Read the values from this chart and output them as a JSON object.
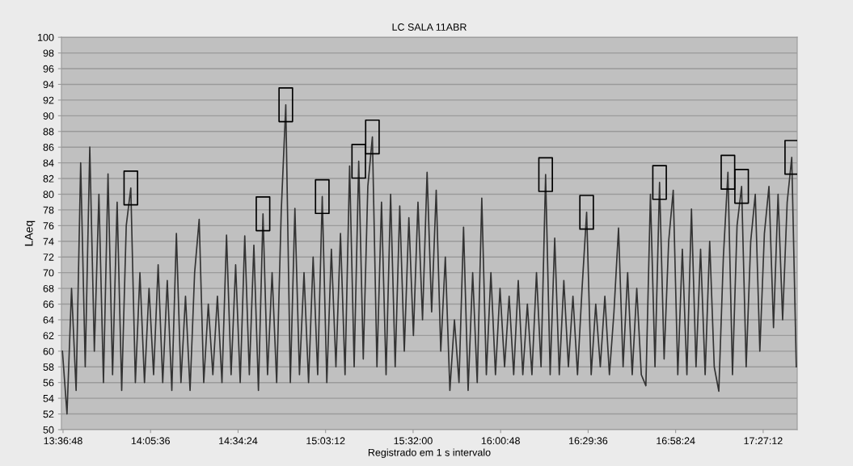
{
  "chart_data": {
    "type": "line",
    "title": "LC SALA 11ABR",
    "xlabel": "Registrado em 1 s intervalo",
    "ylabel": "LAeq",
    "xlim": [
      13.6044,
      17.64
    ],
    "ylim": [
      50,
      100
    ],
    "xticks": [
      {
        "value": 13.6133,
        "label": "13:36:48"
      },
      {
        "value": 14.0933,
        "label": "14:05:36"
      },
      {
        "value": 14.5733,
        "label": "14:34:24"
      },
      {
        "value": 15.0533,
        "label": "15:03:12"
      },
      {
        "value": 15.5333,
        "label": "15:32:00"
      },
      {
        "value": 16.0133,
        "label": "16:00:48"
      },
      {
        "value": 16.4933,
        "label": "16:29:36"
      },
      {
        "value": 16.9733,
        "label": "16:58:24"
      },
      {
        "value": 17.4533,
        "label": "17:27:12"
      }
    ],
    "yticks": [
      50,
      52,
      54,
      56,
      58,
      60,
      62,
      64,
      66,
      68,
      70,
      72,
      74,
      76,
      78,
      80,
      82,
      84,
      86,
      88,
      90,
      92,
      94,
      96,
      98,
      100
    ],
    "grid": "y",
    "series": [
      {
        "color": "#333333",
        "marker": "none",
        "x": [
          13.61,
          13.635,
          13.66,
          13.685,
          13.71,
          13.735,
          13.76,
          13.785,
          13.81,
          13.835,
          13.86,
          13.885,
          13.91,
          13.935,
          13.96,
          13.985,
          14.01,
          14.035,
          14.06,
          14.085,
          14.11,
          14.135,
          14.16,
          14.185,
          14.21,
          14.235,
          14.26,
          14.285,
          14.31,
          14.335,
          14.36,
          14.385,
          14.41,
          14.435,
          14.46,
          14.485,
          14.51,
          14.535,
          14.56,
          14.585,
          14.61,
          14.635,
          14.66,
          14.685,
          14.71,
          14.735,
          14.76,
          14.785,
          14.81,
          14.835,
          14.86,
          14.885,
          14.91,
          14.935,
          14.96,
          14.985,
          15.01,
          15.035,
          15.06,
          15.085,
          15.11,
          15.135,
          15.16,
          15.185,
          15.21,
          15.235,
          15.26,
          15.285,
          15.31,
          15.335,
          15.36,
          15.385,
          15.41,
          15.435,
          15.46,
          15.485,
          15.51,
          15.535,
          15.56,
          15.585,
          15.61,
          15.635,
          15.66,
          15.685,
          15.71,
          15.735,
          15.76,
          15.785,
          15.81,
          15.835,
          15.86,
          15.885,
          15.91,
          15.935,
          15.96,
          15.985,
          16.01,
          16.035,
          16.06,
          16.085,
          16.11,
          16.135,
          16.16,
          16.185,
          16.21,
          16.235,
          16.26,
          16.285,
          16.31,
          16.335,
          16.36,
          16.385,
          16.41,
          16.435,
          16.46,
          16.485,
          16.51,
          16.535,
          16.56,
          16.585,
          16.61,
          16.635,
          16.66,
          16.685,
          16.71,
          16.735,
          16.76,
          16.785,
          16.81,
          16.835,
          16.86,
          16.885,
          16.91,
          16.935,
          16.96,
          16.985,
          17.01,
          17.035,
          17.06,
          17.085,
          17.11,
          17.135,
          17.16,
          17.185,
          17.21,
          17.235,
          17.26,
          17.285,
          17.31,
          17.335,
          17.36,
          17.385,
          17.41,
          17.435,
          17.46,
          17.485,
          17.51,
          17.535,
          17.56,
          17.585,
          17.61,
          17.635
        ],
        "values": [
          60,
          52,
          68,
          55,
          84,
          58,
          86,
          60,
          80,
          56,
          82.6,
          57,
          79,
          55,
          76,
          80.8,
          56,
          70,
          56,
          68,
          57,
          71,
          56,
          69,
          55,
          75,
          56,
          67,
          55,
          70,
          76.8,
          56,
          66,
          57,
          67,
          56,
          74.8,
          57,
          71,
          56,
          74.7,
          57,
          73.5,
          55,
          77.5,
          57,
          70,
          56,
          77.8,
          91.4,
          56,
          78.2,
          57,
          70,
          56,
          72,
          57,
          79.7,
          56,
          73,
          58,
          75,
          57,
          83.6,
          58,
          84.2,
          59,
          81,
          87.3,
          58,
          79,
          57,
          80,
          58,
          78.5,
          60,
          77,
          62,
          79,
          64,
          82.8,
          65,
          80.5,
          60,
          72,
          55,
          64,
          56,
          75.8,
          55,
          70,
          56,
          79.5,
          57,
          70,
          57,
          68,
          58,
          67,
          57,
          69,
          57,
          66,
          57,
          70,
          58,
          82.5,
          57,
          74.4,
          57,
          69,
          58,
          67,
          57,
          68,
          77.7,
          57,
          66,
          58,
          67,
          57,
          65,
          75.7,
          58,
          70,
          57,
          68,
          57,
          55.6,
          80,
          58,
          81.5,
          59,
          74,
          80.5,
          57,
          73,
          57,
          78.1,
          58,
          73,
          57,
          74,
          58,
          54.9,
          72,
          82.8,
          57,
          76,
          81,
          58,
          74,
          80,
          60,
          75,
          81,
          63,
          80,
          64,
          79,
          84.7,
          58
        ]
      },
      {
        "type": "scatter",
        "color": "#000000",
        "marker": "square",
        "x": [
          13.985,
          14.71,
          14.835,
          15.035,
          15.235,
          15.31,
          16.26,
          16.485,
          16.885,
          17.26,
          17.335,
          17.61
        ],
        "values": [
          80.8,
          77.5,
          91.4,
          79.7,
          84.2,
          87.3,
          82.5,
          77.7,
          81.5,
          82.8,
          81,
          84.7
        ]
      }
    ]
  }
}
